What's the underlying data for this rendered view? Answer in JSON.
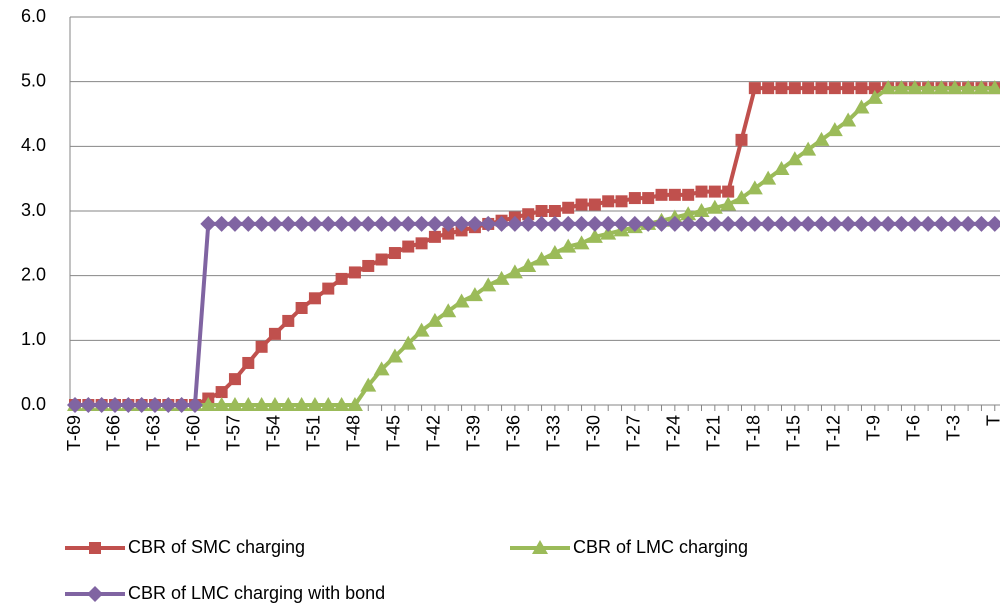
{
  "chart_data": {
    "type": "line",
    "categories": [
      "T-69",
      null,
      null,
      "T-66",
      null,
      null,
      "T-63",
      null,
      null,
      "T-60",
      null,
      null,
      "T-57",
      null,
      null,
      "T-54",
      null,
      null,
      "T-51",
      null,
      null,
      "T-48",
      null,
      null,
      "T-45",
      null,
      null,
      "T-42",
      null,
      null,
      "T-39",
      null,
      null,
      "T-36",
      null,
      null,
      "T-33",
      null,
      null,
      "T-30",
      null,
      null,
      "T-27",
      null,
      null,
      "T-24",
      null,
      null,
      "T-21",
      null,
      null,
      "T-18",
      null,
      null,
      "T-15",
      null,
      null,
      "T-12",
      null,
      null,
      "T-9",
      null,
      null,
      "T-6",
      null,
      null,
      "T-3",
      null,
      null,
      "T"
    ],
    "series": [
      {
        "name": "CBR of SMC charging",
        "color": "#c0504d",
        "marker": "square",
        "values": [
          0,
          0,
          0,
          0,
          0,
          0,
          0,
          0,
          0,
          0,
          0.1,
          0.2,
          0.4,
          0.65,
          0.9,
          1.1,
          1.3,
          1.5,
          1.65,
          1.8,
          1.95,
          2.05,
          2.15,
          2.25,
          2.35,
          2.45,
          2.5,
          2.6,
          2.65,
          2.7,
          2.75,
          2.8,
          2.85,
          2.9,
          2.95,
          3.0,
          3.0,
          3.05,
          3.1,
          3.1,
          3.15,
          3.15,
          3.2,
          3.2,
          3.25,
          3.25,
          3.25,
          3.3,
          3.3,
          3.3,
          4.1,
          4.9,
          4.9,
          4.9,
          4.9,
          4.9,
          4.9,
          4.9,
          4.9,
          4.9,
          4.9,
          4.9,
          4.9,
          4.9,
          4.9,
          4.9,
          4.9,
          4.9,
          4.9,
          4.9
        ]
      },
      {
        "name": "CBR of LMC charging",
        "color": "#9bbb59",
        "marker": "triangle",
        "values": [
          0,
          0,
          0,
          0,
          0,
          0,
          0,
          0,
          0,
          0,
          0,
          0,
          0,
          0,
          0,
          0,
          0,
          0,
          0,
          0,
          0,
          0,
          0.3,
          0.55,
          0.75,
          0.95,
          1.15,
          1.3,
          1.45,
          1.6,
          1.7,
          1.85,
          1.95,
          2.05,
          2.15,
          2.25,
          2.35,
          2.45,
          2.5,
          2.6,
          2.65,
          2.7,
          2.75,
          2.8,
          2.85,
          2.9,
          2.95,
          3.0,
          3.05,
          3.1,
          3.2,
          3.35,
          3.5,
          3.65,
          3.8,
          3.95,
          4.1,
          4.25,
          4.4,
          4.6,
          4.75,
          4.9,
          4.9,
          4.9,
          4.9,
          4.9,
          4.9,
          4.9,
          4.9,
          4.9
        ]
      },
      {
        "name": "CBR of LMC charging with bond",
        "color": "#8064a2",
        "marker": "diamond",
        "values": [
          0,
          0,
          0,
          0,
          0,
          0,
          0,
          0,
          0,
          0,
          2.8,
          2.8,
          2.8,
          2.8,
          2.8,
          2.8,
          2.8,
          2.8,
          2.8,
          2.8,
          2.8,
          2.8,
          2.8,
          2.8,
          2.8,
          2.8,
          2.8,
          2.8,
          2.8,
          2.8,
          2.8,
          2.8,
          2.8,
          2.8,
          2.8,
          2.8,
          2.8,
          2.8,
          2.8,
          2.8,
          2.8,
          2.8,
          2.8,
          2.8,
          2.8,
          2.8,
          2.8,
          2.8,
          2.8,
          2.8,
          2.8,
          2.8,
          2.8,
          2.8,
          2.8,
          2.8,
          2.8,
          2.8,
          2.8,
          2.8,
          2.8,
          2.8,
          2.8,
          2.8,
          2.8,
          2.8,
          2.8,
          2.8,
          2.8,
          2.8
        ]
      }
    ],
    "ylim": [
      0,
      6
    ],
    "yticks": [
      {
        "value": 0,
        "label": "0.0"
      },
      {
        "value": 1,
        "label": "1.0"
      },
      {
        "value": 2,
        "label": "2.0"
      },
      {
        "value": 3,
        "label": "3.0"
      },
      {
        "value": 4,
        "label": "4.0"
      },
      {
        "value": 5,
        "label": "5.0"
      },
      {
        "value": 6,
        "label": "6.0"
      }
    ],
    "grid": true
  }
}
